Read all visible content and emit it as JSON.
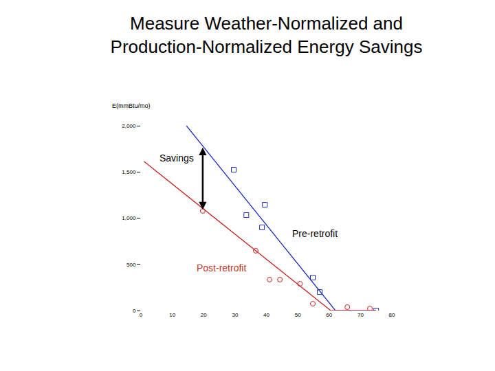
{
  "chart_data": {
    "type": "scatter",
    "title": [
      "Measure Weather-Normalized and",
      "Production-Normalized Energy Savings"
    ],
    "ylabel": "E(mmBtu/mo)",
    "xlim": [
      0,
      80
    ],
    "ylim": [
      0,
      2000
    ],
    "xticks": [
      0,
      10,
      20,
      30,
      40,
      50,
      60,
      70,
      80
    ],
    "yticks": [
      0,
      500,
      {
        "value": 1000,
        "label": "1,000"
      },
      {
        "value": 1500,
        "label": "1,500"
      },
      {
        "value": 2000,
        "label": "2,000"
      }
    ],
    "grid": false,
    "series": [
      {
        "type": "line",
        "color": "#1f2fc0",
        "x": [
          14.5,
          62,
          75
        ],
        "values": [
          2000,
          0,
          0
        ]
      },
      {
        "type": "line",
        "color": "#c82020",
        "x": [
          1,
          60.5,
          75
        ],
        "values": [
          1613,
          0,
          0
        ]
      },
      {
        "type": "scatter",
        "color": "#1f2fc0",
        "marker": "square-open",
        "x": [
          29.6,
          39.5,
          33.6,
          38.6,
          54.8,
          57,
          75
        ],
        "values": [
          1524,
          1145,
          1033,
          900,
          357,
          200,
          0
        ]
      },
      {
        "type": "scatter",
        "color": "#c82020",
        "marker": "circle-open",
        "x": [
          19.7,
          36.6,
          41,
          44.3,
          50.7,
          54.8,
          65.8,
          73
        ],
        "values": [
          1078,
          647,
          335,
          335,
          290,
          74,
          37,
          22
        ]
      }
    ],
    "annotations": [
      {
        "text": "Savings",
        "x": 11.5,
        "y": 1650,
        "color": "#000000"
      },
      {
        "text": "Pre-retrofit",
        "x": 55.5,
        "y": 830,
        "color": "#000000"
      },
      {
        "text": "Post-retrofit",
        "x": 25.6,
        "y": 460,
        "color": "#c0392b"
      }
    ],
    "savings_arrow": {
      "x": 19.7,
      "y_start": 1776,
      "y_end": 1093
    }
  }
}
